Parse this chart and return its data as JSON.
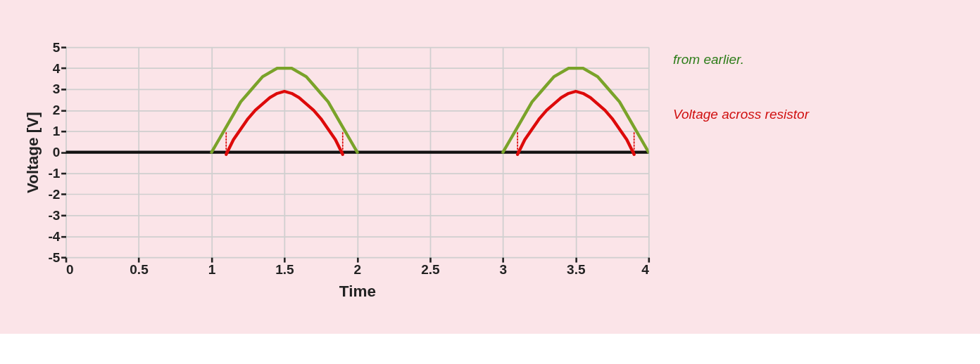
{
  "chart_data": {
    "type": "line",
    "xlabel": "Time",
    "ylabel": "Voltage [V]",
    "xlim": [
      0,
      4
    ],
    "ylim": [
      -5,
      5
    ],
    "xticks": [
      0,
      0.5,
      1,
      1.5,
      2,
      2.5,
      3,
      3.5,
      4
    ],
    "yticks": [
      -5,
      -4,
      -3,
      -2,
      -1,
      0,
      1,
      2,
      3,
      4,
      5
    ],
    "grid": true,
    "marker": "none",
    "series": [
      {
        "color": "#111111",
        "x": [
          0,
          4
        ],
        "values": [
          0,
          0
        ]
      },
      {
        "color": "#7aa32a",
        "x": [
          1,
          1.05,
          1.1,
          1.15,
          1.2,
          1.25,
          1.3,
          1.35,
          1.4,
          1.45,
          1.5,
          1.55,
          1.6,
          1.65,
          1.7,
          1.75,
          1.8,
          1.85,
          1.9,
          1.95,
          2
        ],
        "values": [
          0,
          0.6,
          1.2,
          1.8,
          2.4,
          2.8,
          3.2,
          3.6,
          3.8,
          4.0,
          4.0,
          4.0,
          3.8,
          3.6,
          3.2,
          2.8,
          2.4,
          1.8,
          1.2,
          0.6,
          0
        ]
      },
      {
        "color": "#7aa32a",
        "x": [
          3,
          3.05,
          3.1,
          3.15,
          3.2,
          3.25,
          3.3,
          3.35,
          3.4,
          3.45,
          3.5,
          3.55,
          3.6,
          3.65,
          3.7,
          3.75,
          3.8,
          3.85,
          3.9,
          3.95,
          4
        ],
        "values": [
          0,
          0.6,
          1.2,
          1.8,
          2.4,
          2.8,
          3.2,
          3.6,
          3.8,
          4.0,
          4.0,
          4.0,
          3.8,
          3.6,
          3.2,
          2.8,
          2.4,
          1.8,
          1.2,
          0.6,
          0
        ]
      },
      {
        "color": "#dd0a0a",
        "x": [
          1.1,
          1.15,
          1.2,
          1.25,
          1.3,
          1.35,
          1.4,
          1.45,
          1.5,
          1.55,
          1.6,
          1.65,
          1.7,
          1.75,
          1.8,
          1.85,
          1.9
        ],
        "values": [
          -0.1,
          0.6,
          1.1,
          1.6,
          2.0,
          2.3,
          2.6,
          2.8,
          2.9,
          2.8,
          2.6,
          2.3,
          2.0,
          1.6,
          1.1,
          0.6,
          -0.1
        ]
      },
      {
        "color": "#dd0a0a",
        "x": [
          3.1,
          3.15,
          3.2,
          3.25,
          3.3,
          3.35,
          3.4,
          3.45,
          3.5,
          3.55,
          3.6,
          3.65,
          3.7,
          3.75,
          3.8,
          3.85,
          3.9
        ],
        "values": [
          -0.1,
          0.6,
          1.1,
          1.6,
          2.0,
          2.3,
          2.6,
          2.8,
          2.9,
          2.8,
          2.6,
          2.3,
          2.0,
          1.6,
          1.1,
          0.6,
          -0.1
        ]
      },
      {
        "color": "#dd0a0a",
        "line_style": "dotted",
        "x": [
          1.1,
          1.1
        ],
        "values": [
          0,
          1.0
        ]
      },
      {
        "color": "#dd0a0a",
        "line_style": "dotted",
        "x": [
          1.9,
          1.9
        ],
        "values": [
          0,
          1.0
        ]
      },
      {
        "color": "#dd0a0a",
        "line_style": "dotted",
        "x": [
          3.1,
          3.1
        ],
        "values": [
          0,
          1.0
        ]
      },
      {
        "color": "#dd0a0a",
        "line_style": "dotted",
        "x": [
          3.9,
          3.9
        ],
        "values": [
          0,
          1.0
        ]
      }
    ],
    "annotations": [
      "from earlier.",
      "Voltage across resistor"
    ]
  }
}
